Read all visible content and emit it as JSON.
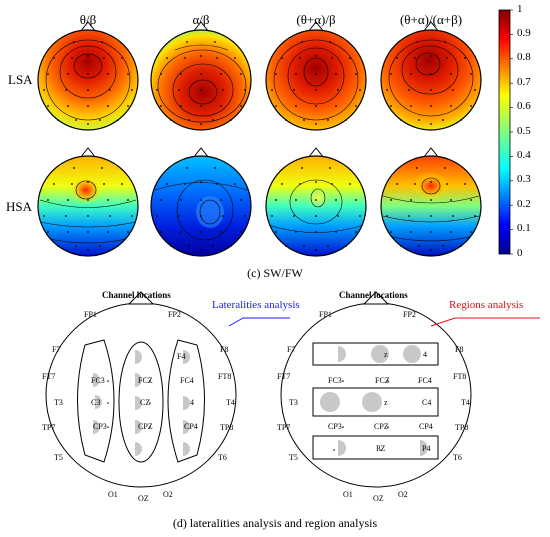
{
  "panel_c": {
    "columns": [
      "θ/β",
      "α/β",
      "(θ+α)/β",
      "(θ+α)/(α+β)"
    ],
    "rows": [
      "LSA",
      "HSA"
    ],
    "caption": "(c)  SW/FW",
    "colorbar_ticks": [
      "1",
      "0.9",
      "0.8",
      "0.7",
      "0.6",
      "0.5",
      "0.4",
      "0.3",
      "0.2",
      "0.1",
      "0"
    ]
  },
  "panel_d": {
    "left_title": "Channel locations",
    "right_title": "Channel locations",
    "left_analysis": "Lateralities analysis",
    "right_analysis": "Regions analysis",
    "left_analysis_color": "#1a1aff",
    "right_analysis_color": "#e01010",
    "caption": "(d) lateralities analysis and region analysis",
    "left_channels": {
      "fp1": "FP1",
      "fp2": "FP2",
      "f7": "F7",
      "f8": "F8",
      "f4": "F4",
      "ft7": "FT7",
      "ft8": "FT8",
      "fc3": "FC3",
      "fcz": "FCZ",
      "fc4": "FC4",
      "t3": "T3",
      "t4": "T4",
      "c3": "C3",
      "cz": "CZ",
      "c4": "4",
      "tp7": "TP7",
      "tp8": "TP8",
      "cp3": "CP3",
      "cpz": "CPZ",
      "cp4": "CP4",
      "t5": "T5",
      "t6": "T6",
      "o1": "O1",
      "oz": "OZ",
      "o2": "O2"
    },
    "right_channels": {
      "fp1": "FP1",
      "fp2": "FP2",
      "f7": "F7",
      "f8": "F8",
      "fz": "z",
      "f4": "4",
      "ft7": "FT7",
      "ft8": "FT8",
      "fc3": "FC3",
      "fcz": "FCZ",
      "fc4": "FC4",
      "t3": "T3",
      "t4": "T4",
      "cz": "z",
      "c4": "C4",
      "tp7": "TP7",
      "tp8": "TP8",
      "cp3": "CP3",
      "cpz": "CPZ",
      "cp4": "CP4",
      "t5": "T5",
      "t6": "T6",
      "pz": "PZ",
      "p4": "P4",
      "o1": "O1",
      "oz": "OZ",
      "o2": "O2"
    }
  }
}
